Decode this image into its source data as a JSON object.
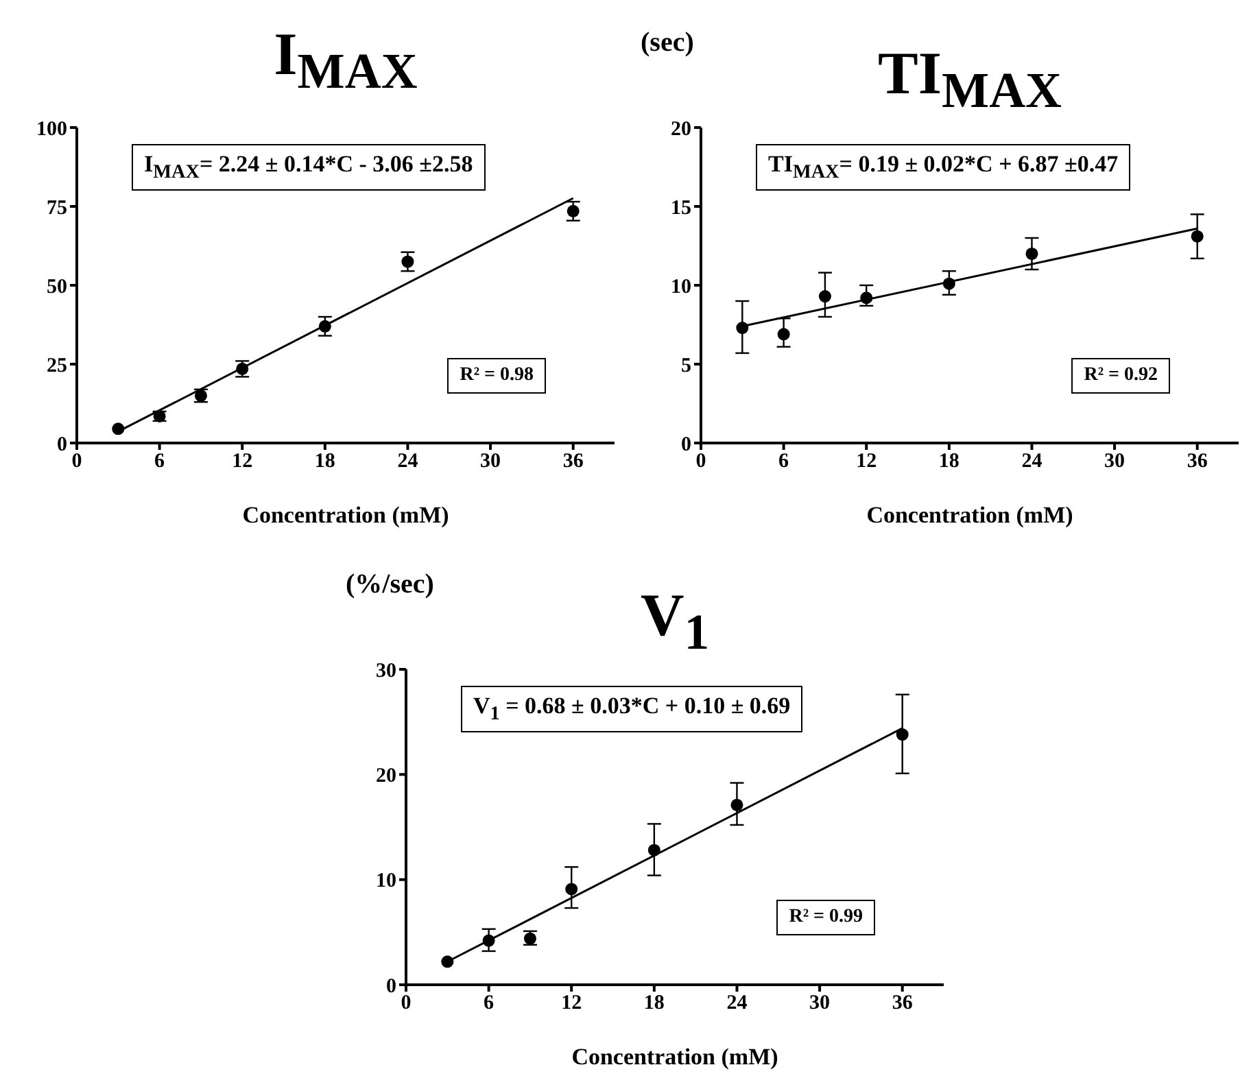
{
  "chart_data": [
    {
      "type": "scatter",
      "title": "I$_{MAX}$",
      "xlabel": "Concentration (mM)",
      "xlim": [
        0,
        39
      ],
      "xticks": [
        0,
        6,
        12,
        18,
        24,
        30,
        36
      ],
      "ylim": [
        0,
        100
      ],
      "yticks": [
        0,
        25,
        50,
        75,
        100
      ],
      "annotations": [
        "I$_{MAX}$=  2.24 ± 0.14*C - 3.06 ±2.58",
        "R² = 0.98"
      ],
      "series": [
        {
          "marker": "circle",
          "color": "#000000",
          "x": [
            3,
            6,
            9,
            12,
            18,
            24,
            36
          ],
          "values": [
            4.5,
            8.5,
            15,
            23.5,
            37,
            57.5,
            73.5
          ],
          "errors": [
            null,
            1.5,
            2,
            2.5,
            3,
            3,
            3
          ]
        },
        {
          "type": "line",
          "marker": "none",
          "color": "#000000",
          "x": [
            3.2,
            36
          ],
          "values": [
            4.1,
            77.6
          ]
        }
      ]
    },
    {
      "type": "scatter",
      "title": "TI$_{MAX}$",
      "ylabel": "(sec)",
      "xlabel": "Concentration (mM)",
      "xlim": [
        0,
        39
      ],
      "xticks": [
        0,
        6,
        12,
        18,
        24,
        30,
        36
      ],
      "ylim": [
        0,
        20
      ],
      "yticks": [
        0,
        5,
        10,
        15,
        20
      ],
      "annotations": [
        "TI$_{MAX}$=  0.19 ± 0.02*C + 6.87 ±0.47",
        "R² = 0.92"
      ],
      "series": [
        {
          "marker": "circle",
          "color": "#000000",
          "x": [
            3,
            6,
            9,
            12,
            18,
            24,
            36
          ],
          "values": [
            7.3,
            6.9,
            9.3,
            9.2,
            10.1,
            12.0,
            13.1
          ],
          "errors": [
            [
              5.7,
              9.0
            ],
            [
              6.1,
              7.9
            ],
            [
              8.0,
              10.8
            ],
            [
              8.7,
              10.0
            ],
            [
              9.4,
              10.9
            ],
            [
              11.0,
              13.0
            ],
            [
              11.7,
              14.5
            ]
          ]
        },
        {
          "type": "line",
          "marker": "none",
          "color": "#000000",
          "x": [
            3,
            36
          ],
          "values": [
            7.4,
            13.6
          ]
        }
      ]
    },
    {
      "type": "scatter",
      "title": "V$_{1}$",
      "ylabel": "(%/sec)",
      "xlabel": "Concentration (mM)",
      "xlim": [
        0,
        39
      ],
      "xticks": [
        0,
        6,
        12,
        18,
        24,
        30,
        36
      ],
      "ylim": [
        0,
        30
      ],
      "yticks": [
        0,
        10,
        20,
        30
      ],
      "annotations": [
        "V$_{1}$ = 0.68 ± 0.03*C + 0.10 ± 0.69",
        "R² = 0.99"
      ],
      "series": [
        {
          "marker": "circle",
          "color": "#000000",
          "x": [
            3,
            6,
            9,
            12,
            18,
            24,
            36
          ],
          "values": [
            2.2,
            4.2,
            4.4,
            9.1,
            12.8,
            17.1,
            23.8
          ],
          "errors": [
            null,
            [
              3.2,
              5.3
            ],
            [
              3.8,
              5.1
            ],
            [
              7.3,
              11.2
            ],
            [
              10.4,
              15.3
            ],
            [
              15.2,
              19.2
            ],
            [
              20.1,
              27.6
            ]
          ]
        },
        {
          "type": "line",
          "marker": "none",
          "color": "#000000",
          "x": [
            3,
            36
          ],
          "values": [
            2.2,
            24.4
          ]
        }
      ]
    }
  ]
}
